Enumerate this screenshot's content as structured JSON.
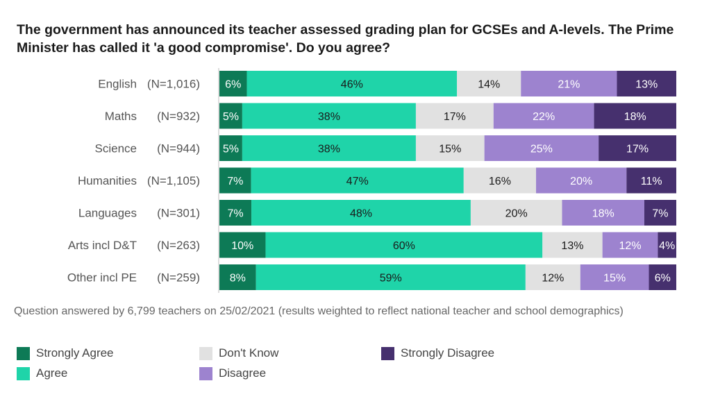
{
  "chart_data": {
    "type": "bar",
    "orientation": "horizontal",
    "stacked": "100%",
    "title": "The government has announced its teacher assessed grading plan for GCSEs and A-levels. The Prime Minister has called it 'a good compromise'. Do you agree?",
    "categories": [
      "English",
      "Maths",
      "Science",
      "Humanities",
      "Languages",
      "Arts incl D&T",
      "Other incl PE"
    ],
    "sample_sizes": [
      "(N=1,016)",
      "(N=932)",
      "(N=944)",
      "(N=1,105)",
      "(N=301)",
      "(N=263)",
      "(N=259)"
    ],
    "series": [
      {
        "name": "Strongly Agree",
        "color": "#0d7a56",
        "label_color": "#ffffff",
        "values": [
          6,
          5,
          5,
          7,
          7,
          10,
          8
        ]
      },
      {
        "name": "Agree",
        "color": "#1fd4a9",
        "label_color": "#1a1a1a",
        "values": [
          46,
          38,
          38,
          47,
          48,
          60,
          59
        ]
      },
      {
        "name": "Don't Know",
        "color": "#e1e1e1",
        "label_color": "#1a1a1a",
        "values": [
          14,
          17,
          15,
          16,
          20,
          13,
          12
        ]
      },
      {
        "name": "Disagree",
        "color": "#9d83cf",
        "label_color": "#ffffff",
        "values": [
          21,
          22,
          25,
          20,
          18,
          12,
          15
        ]
      },
      {
        "name": "Strongly Disagree",
        "color": "#46306e",
        "label_color": "#ffffff",
        "values": [
          13,
          18,
          17,
          11,
          7,
          4,
          6
        ]
      }
    ],
    "xlim": [
      0,
      100
    ],
    "value_suffix": "%",
    "legend_position": "bottom"
  },
  "footnote": "Question answered by 6,799 teachers on 25/02/2021 (results weighted to reflect national teacher and school demographics)"
}
